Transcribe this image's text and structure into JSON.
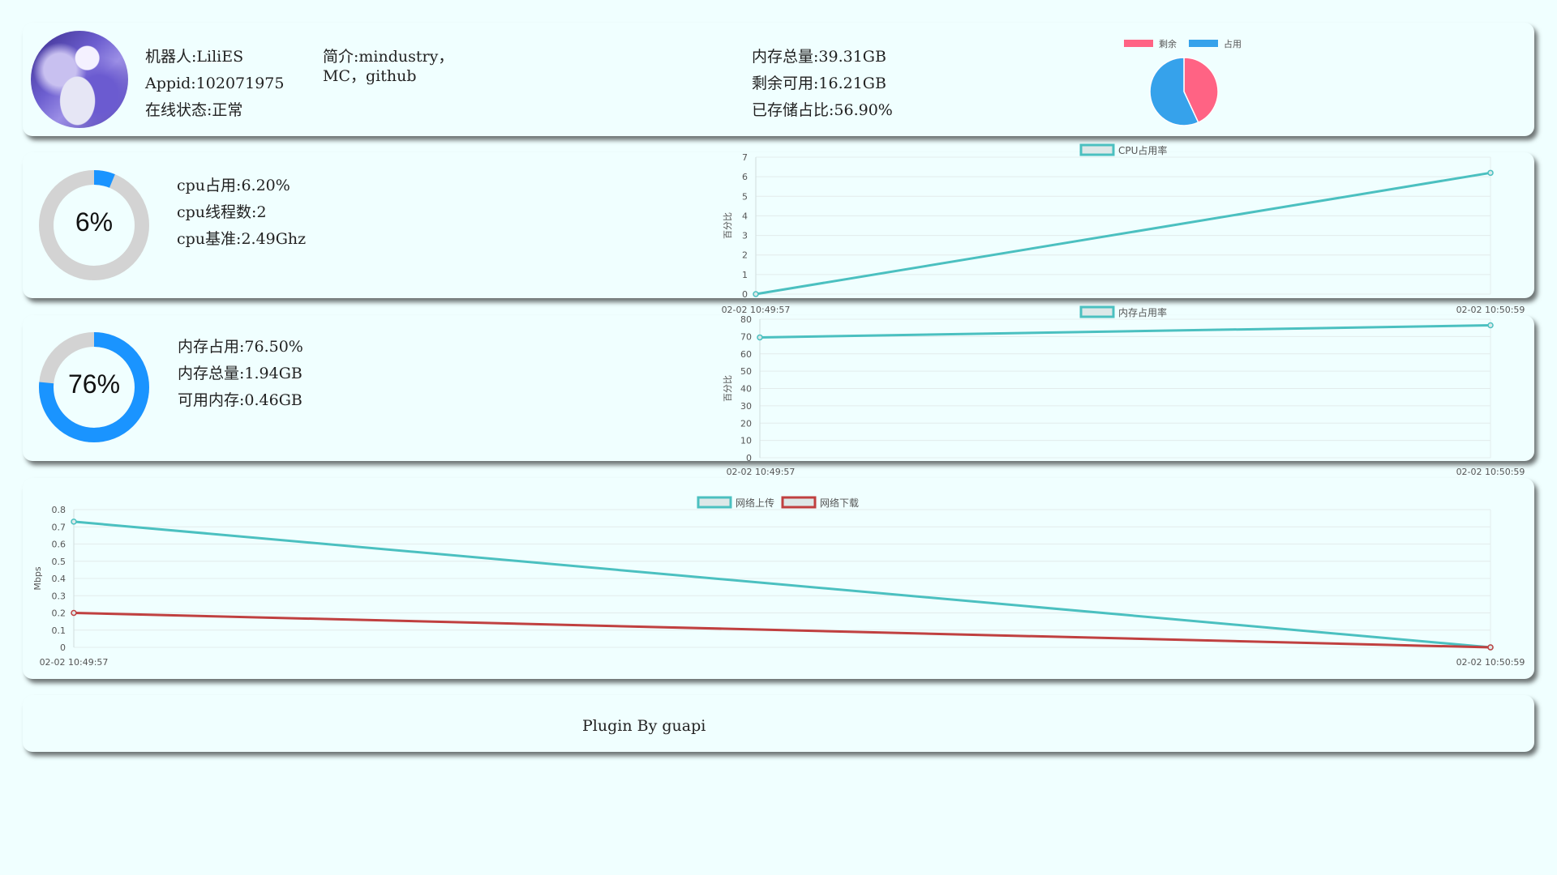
{
  "robot": {
    "name_line": "机器人:LiliES",
    "appid_line": "Appid:102071975",
    "status_line": "在线状态:正常",
    "intro_line1": "简介:mindustry，",
    "intro_line2": "MC，github",
    "disk_total_line": "内存总量:39.31GB",
    "disk_free_line": "剩余可用:16.21GB",
    "disk_used_line": "已存储占比:56.90%"
  },
  "disk_pie": {
    "legend": [
      "剩余",
      "占用"
    ],
    "colors": {
      "free": "#ff6384",
      "used": "#36a2eb"
    },
    "chart_data": {
      "type": "pie",
      "categories": [
        "剩余",
        "占用"
      ],
      "values": [
        43.1,
        56.9
      ]
    }
  },
  "cpu": {
    "percent_label": "6%",
    "percent_value": 6.2,
    "usage_line": "cpu占用:6.20%",
    "threads_line": "cpu线程数:2",
    "freq_line": "cpu基准:2.49Ghz"
  },
  "mem": {
    "percent_label": "76%",
    "percent_value": 76.5,
    "usage_line": "内存占用:76.50%",
    "total_line": "内存总量:1.94GB",
    "free_line": "可用内存:0.46GB"
  },
  "colors": {
    "ring_bg": "#d3d3d3",
    "ring_fg": "#1a94ff",
    "teal": "#4bc0c0",
    "red": "#c04040",
    "grid": "#e3ecec"
  },
  "footer": {
    "text": "Plugin By guapi"
  },
  "chart_data": [
    {
      "type": "line",
      "x": [
        "02-02 10:49:57",
        "02-02 10:50:59"
      ],
      "series": [
        {
          "name": "CPU占用率",
          "values": [
            0,
            6.2
          ]
        }
      ],
      "ylabel": "百分比",
      "ylim": [
        0,
        7
      ],
      "yticks": [
        "0",
        "1",
        "2",
        "3",
        "4",
        "5",
        "6",
        "7"
      ],
      "legend": "top-center"
    },
    {
      "type": "line",
      "x": [
        "02-02 10:49:57",
        "02-02 10:50:59"
      ],
      "series": [
        {
          "name": "内存占用率",
          "values": [
            69.5,
            76.5
          ]
        }
      ],
      "ylabel": "百分比",
      "ylim": [
        0,
        80
      ],
      "yticks": [
        "0",
        "10",
        "20",
        "30",
        "40",
        "50",
        "60",
        "70",
        "80"
      ],
      "legend": "top-center"
    },
    {
      "type": "line",
      "x": [
        "02-02 10:49:57",
        "02-02 10:50:59"
      ],
      "series": [
        {
          "name": "网络上传",
          "values": [
            0.73,
            0
          ]
        },
        {
          "name": "网络下载",
          "values": [
            0.2,
            0
          ]
        }
      ],
      "ylabel": "Mbps",
      "ylim": [
        0,
        0.8
      ],
      "yticks": [
        "0",
        "0.1",
        "0.2",
        "0.3",
        "0.4",
        "0.5",
        "0.6",
        "0.7",
        "0.8"
      ],
      "legend": "top-center"
    }
  ]
}
